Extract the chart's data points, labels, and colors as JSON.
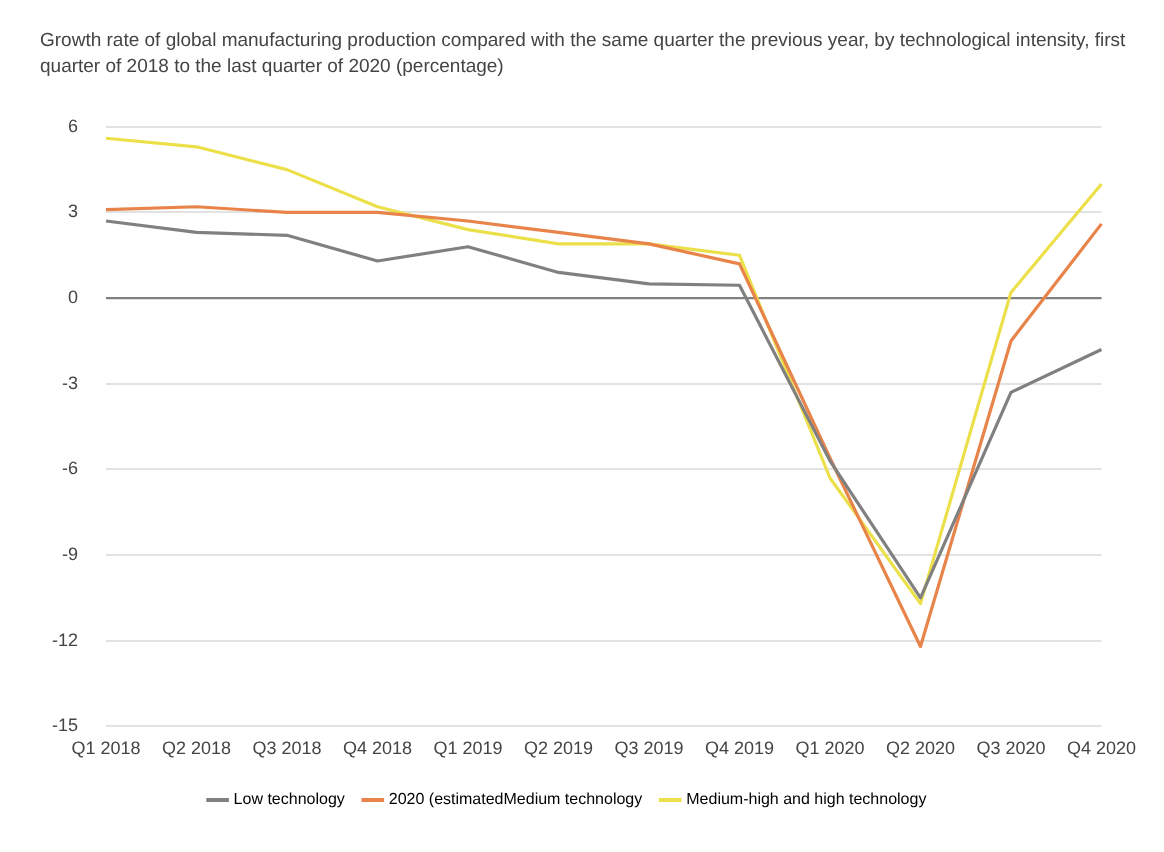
{
  "chart_data": {
    "type": "line",
    "title": "Growth rate of global manufacturing production compared with the same quarter the previous year, by technological intensity, first quarter of 2018 to the last quarter of 2020 (percentage)",
    "categories": [
      "Q1 2018",
      "Q2 2018",
      "Q3 2018",
      "Q4 2018",
      "Q1 2019",
      "Q2 2019",
      "Q3 2019",
      "Q4 2019",
      "Q1 2020",
      "Q2 2020",
      "Q3 2020",
      "Q4 2020"
    ],
    "series": [
      {
        "name": "Low technology",
        "color": "#808080",
        "values": [
          2.7,
          2.3,
          2.2,
          1.3,
          1.8,
          0.9,
          0.5,
          0.45,
          -5.7,
          -10.5,
          -3.3,
          -1.8
        ]
      },
      {
        "name": "2020 (estimatedMedium technology",
        "color": "#e8834a",
        "values": [
          3.1,
          3.2,
          3.0,
          3.0,
          2.7,
          2.3,
          1.9,
          1.2,
          -5.6,
          -12.2,
          -1.5,
          2.6
        ]
      },
      {
        "name": "Medium-high and high technology",
        "color": "#ece04a",
        "values": [
          5.6,
          5.3,
          4.5,
          3.2,
          2.4,
          1.9,
          1.9,
          1.5,
          -6.3,
          -10.7,
          0.2,
          4.0
        ]
      }
    ],
    "ylim": [
      -15,
      6
    ],
    "yticks": [
      -15,
      -12,
      -9,
      -6,
      -3,
      0,
      3,
      6
    ],
    "grid": "y",
    "legend": "bottom",
    "marker": "none",
    "line_style": "solid",
    "ref_lines": [
      {
        "axis": "y",
        "value": 0,
        "color": "#808080"
      }
    ]
  }
}
